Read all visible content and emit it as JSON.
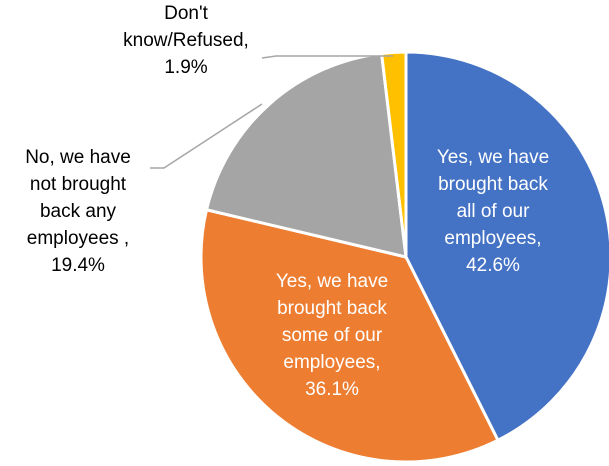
{
  "chart_data": {
    "type": "pie",
    "title": "",
    "start_angle_deg": 0,
    "direction": "clockwise",
    "slices": [
      {
        "label": "Yes, we have brought back all of our employees,",
        "label_lines": [
          "Yes, we have",
          "brought back",
          "all of our",
          "employees,"
        ],
        "value": 42.6,
        "value_text": "42.6%",
        "color": "#4472C4",
        "label_color": "#FFFFFF",
        "label_position": "inside"
      },
      {
        "label": "Yes, we have brought back some of our employees,",
        "label_lines": [
          "Yes, we have",
          "brought back",
          "some of our",
          "employees,"
        ],
        "value": 36.1,
        "value_text": "36.1%",
        "color": "#ED7D31",
        "label_color": "#FFFFFF",
        "label_position": "inside"
      },
      {
        "label": "No, we have not brought back any employees ,",
        "label_lines": [
          "No, we have",
          "not brought",
          "back any",
          "employees ,"
        ],
        "value": 19.4,
        "value_text": "19.4%",
        "color": "#A5A5A5",
        "label_color": "#000000",
        "label_position": "outside-left"
      },
      {
        "label": "Don't know/Refused,",
        "label_lines": [
          "Don't",
          "know/Refused,"
        ],
        "value": 1.9,
        "value_text": "1.9%",
        "color": "#FFC000",
        "label_color": "#000000",
        "label_position": "outside-top"
      }
    ],
    "border_color": "#FFFFFF",
    "leader_line_color": "#A6A6A6"
  }
}
